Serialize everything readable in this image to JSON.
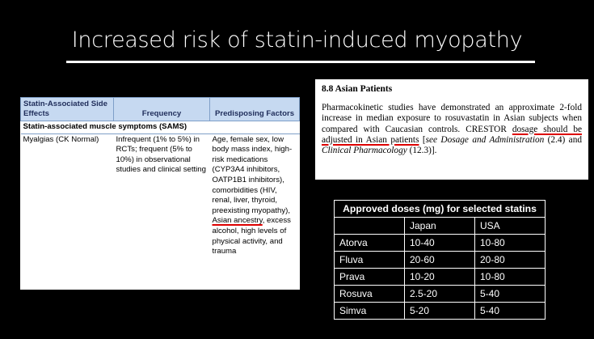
{
  "title": "Increased risk of statin-induced myopathy",
  "left_table": {
    "header": [
      "Statin-Associated Side Effects",
      "Frequency",
      "Predisposing Factors"
    ],
    "section": "Statin-associated muscle symptoms (SAMS)",
    "row": {
      "effect": "Myalgias (CK Normal)",
      "frequency": "Infrequent (1% to 5%) in RCTs; frequent (5% to 10%) in observational studies and clinical setting",
      "factors": [
        "Age, female sex, low body mass index, high-risk medications (CYP3A4 inhibitors, OATP1B1 inhibitors), comorbidities (HIV, renal, liver, thyroid, preexisting myopathy), ",
        "Asian ancestry",
        ", excess alcohol, high levels of physical activity, and trauma"
      ]
    }
  },
  "label_box": {
    "heading": "8.8 Asian Patients",
    "body": [
      "Pharmacokinetic studies have demonstrated an approximate 2-fold increase in median exposure to rosuvastatin in Asian subjects when compared with Caucasian controls. CRESTOR ",
      "dosage should be adjusted in Asian patients",
      " [",
      "see Dosage and Administration",
      " (2.4) and ",
      "Clinical Pharmacology",
      " (12.3)]."
    ]
  },
  "dose_table": {
    "title": "Approved doses (mg) for selected statins",
    "columns": [
      "Japan",
      "USA"
    ],
    "rows": [
      [
        "Atorva",
        "10-40",
        "10-80"
      ],
      [
        "Fluva",
        "20-60",
        "20-80"
      ],
      [
        "Prava",
        "10-20",
        "10-80"
      ],
      [
        "Rosuva",
        "2.5-20",
        "5-40"
      ],
      [
        "Simva",
        "5-20",
        "5-40"
      ]
    ]
  }
}
